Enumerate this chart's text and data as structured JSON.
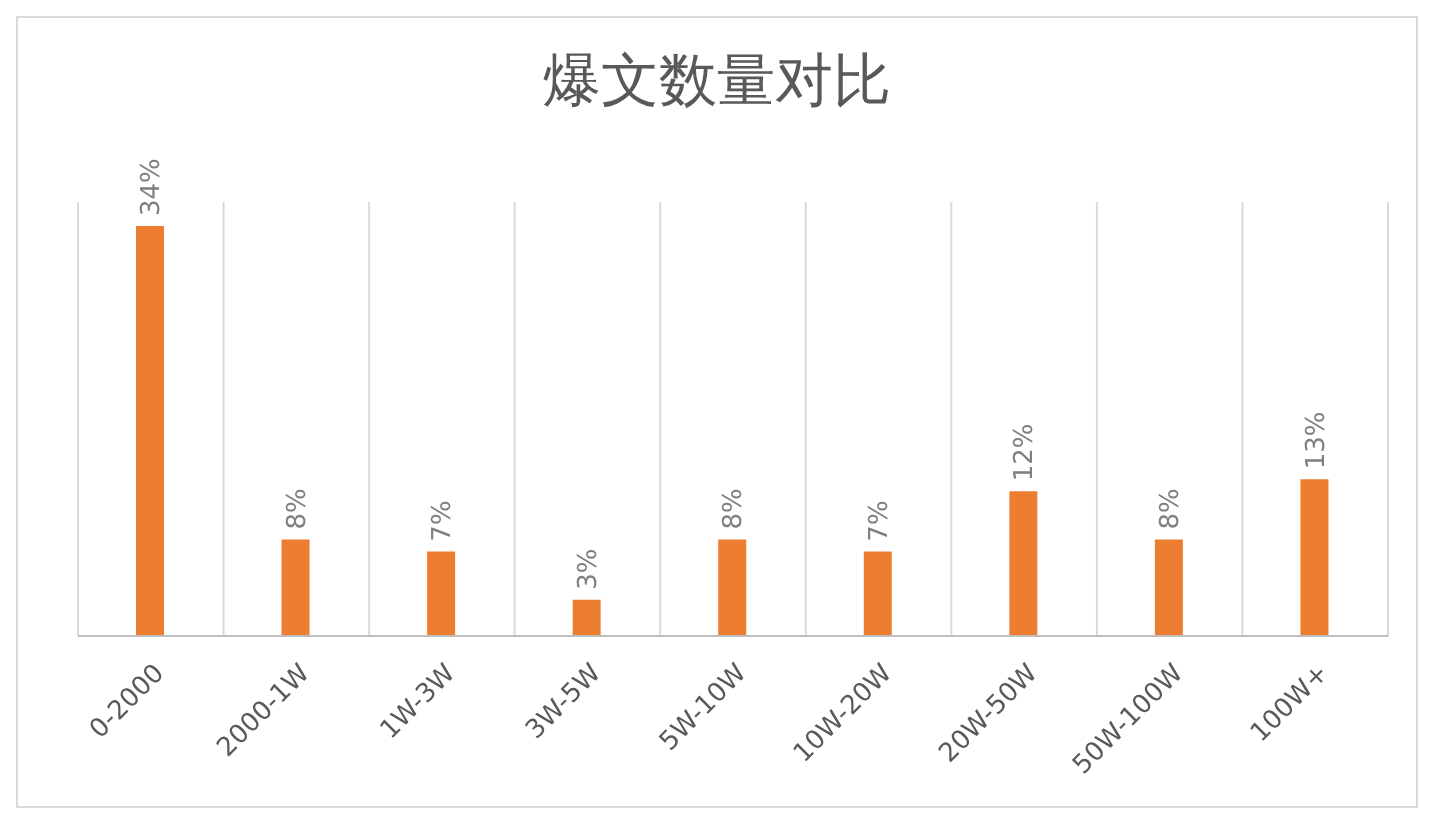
{
  "chart_data": {
    "type": "bar",
    "title": "爆文数量对比",
    "categories": [
      "0-2000",
      "2000-1W",
      "1W-3W",
      "3W-5W",
      "5W-10W",
      "10W-20W",
      "20W-50W",
      "50W-100W",
      "100W+"
    ],
    "values": [
      34,
      8,
      7,
      3,
      8,
      7,
      12,
      8,
      13
    ],
    "value_labels": [
      "34%",
      "8%",
      "7%",
      "3%",
      "8%",
      "7%",
      "12%",
      "8%",
      "13%"
    ],
    "color": "#ed7d31",
    "grid": "x",
    "legend": false
  }
}
